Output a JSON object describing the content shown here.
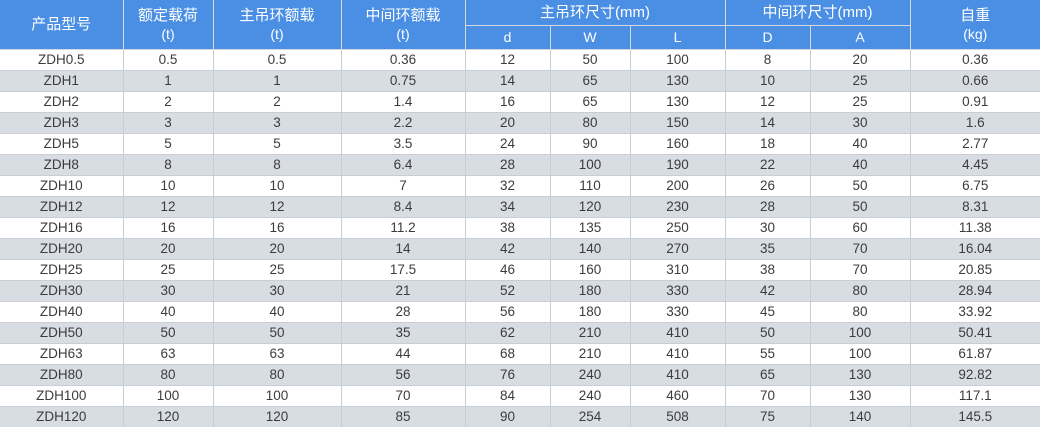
{
  "table": {
    "header": {
      "product_model": "产品型号",
      "rated_load": {
        "label": "额定载荷",
        "unit": "(t)"
      },
      "main_ring_load": {
        "label": "主吊环额载",
        "unit": "(t)"
      },
      "middle_ring_load": {
        "label": "中间环额载",
        "unit": "(t)"
      },
      "main_ring_size_group": "主吊环尺寸(mm)",
      "middle_ring_size_group": "中间环尺寸(mm)",
      "self_weight": {
        "label": "自重",
        "unit": "(kg)"
      },
      "sub_columns": {
        "d": "d",
        "W": "W",
        "L": "L",
        "D": "D",
        "A": "A"
      }
    },
    "rows": [
      [
        "ZDH0.5",
        "0.5",
        "0.5",
        "0.36",
        "12",
        "50",
        "100",
        "8",
        "20",
        "0.36"
      ],
      [
        "ZDH1",
        "1",
        "1",
        "0.75",
        "14",
        "65",
        "130",
        "10",
        "25",
        "0.66"
      ],
      [
        "ZDH2",
        "2",
        "2",
        "1.4",
        "16",
        "65",
        "130",
        "12",
        "25",
        "0.91"
      ],
      [
        "ZDH3",
        "3",
        "3",
        "2.2",
        "20",
        "80",
        "150",
        "14",
        "30",
        "1.6"
      ],
      [
        "ZDH5",
        "5",
        "5",
        "3.5",
        "24",
        "90",
        "160",
        "18",
        "40",
        "2.77"
      ],
      [
        "ZDH8",
        "8",
        "8",
        "6.4",
        "28",
        "100",
        "190",
        "22",
        "40",
        "4.45"
      ],
      [
        "ZDH10",
        "10",
        "10",
        "7",
        "32",
        "110",
        "200",
        "26",
        "50",
        "6.75"
      ],
      [
        "ZDH12",
        "12",
        "12",
        "8.4",
        "34",
        "120",
        "230",
        "28",
        "50",
        "8.31"
      ],
      [
        "ZDH16",
        "16",
        "16",
        "11.2",
        "38",
        "135",
        "250",
        "30",
        "60",
        "11.38"
      ],
      [
        "ZDH20",
        "20",
        "20",
        "14",
        "42",
        "140",
        "270",
        "35",
        "70",
        "16.04"
      ],
      [
        "ZDH25",
        "25",
        "25",
        "17.5",
        "46",
        "160",
        "310",
        "38",
        "70",
        "20.85"
      ],
      [
        "ZDH30",
        "30",
        "30",
        "21",
        "52",
        "180",
        "330",
        "42",
        "80",
        "28.94"
      ],
      [
        "ZDH40",
        "40",
        "40",
        "28",
        "56",
        "180",
        "330",
        "45",
        "80",
        "33.92"
      ],
      [
        "ZDH50",
        "50",
        "50",
        "35",
        "62",
        "210",
        "410",
        "50",
        "100",
        "50.41"
      ],
      [
        "ZDH63",
        "63",
        "63",
        "44",
        "68",
        "210",
        "410",
        "55",
        "100",
        "61.87"
      ],
      [
        "ZDH80",
        "80",
        "80",
        "56",
        "76",
        "240",
        "410",
        "65",
        "130",
        "92.82"
      ],
      [
        "ZDH100",
        "100",
        "100",
        "70",
        "84",
        "240",
        "460",
        "70",
        "130",
        "117.1"
      ],
      [
        "ZDH120",
        "120",
        "120",
        "85",
        "90",
        "254",
        "508",
        "75",
        "140",
        "145.5"
      ]
    ]
  },
  "colors": {
    "header_background": "#4a8fe4",
    "header_text": "#ffffff",
    "stripe_row_background": "#d8dce3",
    "plain_row_background": "#ffffff",
    "body_text": "#3c3c3c",
    "cell_border": "#c9cdd4"
  }
}
